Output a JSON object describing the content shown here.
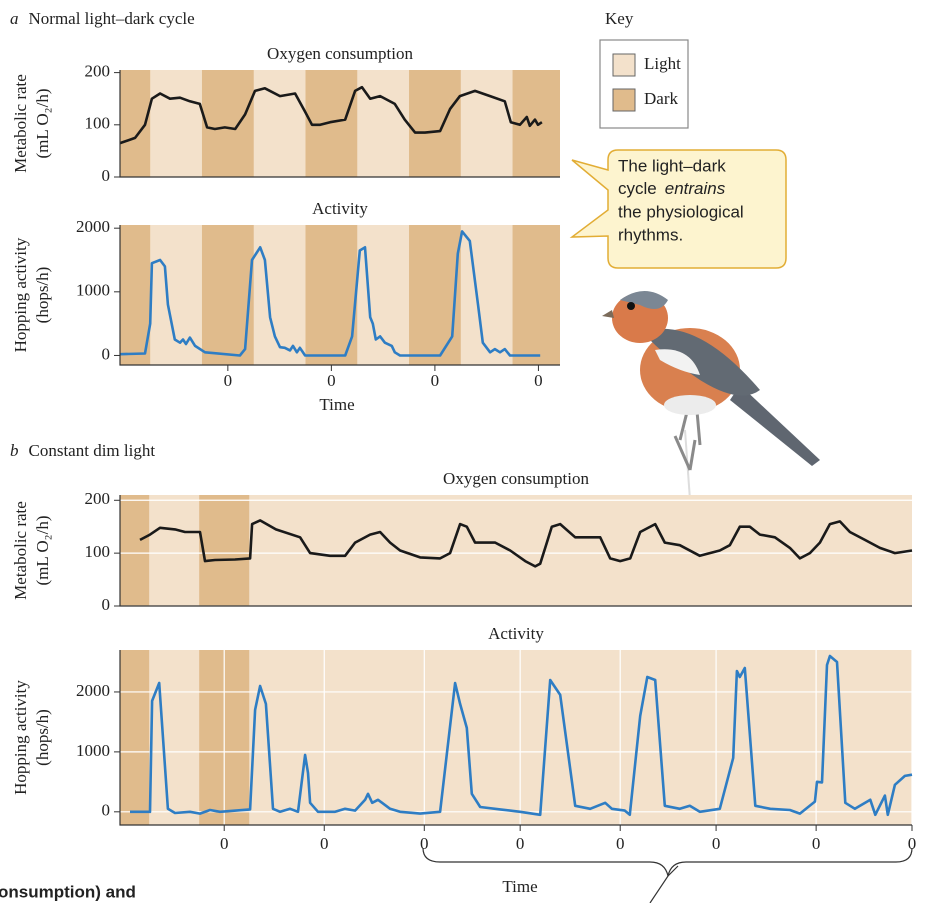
{
  "panels": [
    {
      "letter": "a",
      "title": "Normal light–dark cycle"
    },
    {
      "letter": "b",
      "title": "Constant dim light"
    }
  ],
  "key": {
    "title": "Key",
    "items": [
      {
        "label": "Light",
        "color": "#f3e1cb"
      },
      {
        "label": "Dark",
        "color": "#e0bb8c"
      }
    ]
  },
  "callout": {
    "lines": [
      "The light–dark",
      "cycle",
      "entrains",
      "the physiological",
      "rhythms."
    ]
  },
  "footer_fragment": "onsumption) and",
  "chart_data": [
    {
      "type": "line",
      "title": "Oxygen consumption",
      "ylabel": [
        "Metabolic rate",
        "(mL O₂/h)"
      ],
      "color": "#1a1a1a",
      "xlim": [
        0,
        102
      ],
      "ylim": [
        0,
        205
      ],
      "yticks": [
        0,
        100,
        200
      ],
      "grid": false,
      "dark_intervals": [
        [
          0,
          7
        ],
        [
          19,
          31
        ],
        [
          43,
          55
        ],
        [
          67,
          79
        ],
        [
          91,
          102
        ]
      ],
      "x": [
        0,
        3.5,
        5.8,
        7.4,
        9.3,
        11.6,
        13.9,
        16.2,
        18.5,
        20.2,
        22,
        24.3,
        26.7,
        29,
        31.3,
        33.6,
        37.1,
        40.6,
        42.9,
        44.5,
        46.4,
        48.7,
        52.2,
        54.5,
        56.1,
        58,
        60.3,
        63.7,
        66,
        68.4,
        70.7,
        74.2,
        76.5,
        78.8,
        82.3,
        85.8,
        89.2,
        90.6,
        92.7,
        94.3,
        95,
        96.2,
        96.9,
        97.8
      ],
      "values": [
        65,
        75,
        100,
        150,
        160,
        150,
        152,
        145,
        140,
        95,
        92,
        95,
        92,
        120,
        165,
        170,
        155,
        160,
        125,
        100,
        100,
        105,
        110,
        165,
        172,
        150,
        155,
        140,
        110,
        85,
        85,
        88,
        130,
        155,
        165,
        155,
        145,
        105,
        100,
        115,
        98,
        110,
        100,
        105
      ]
    },
    {
      "type": "line",
      "title": "Activity",
      "ylabel": [
        "Hopping activity",
        "(hops/h)"
      ],
      "xlabel": "Time",
      "color": "#2e7dc4",
      "xlim": [
        0,
        102
      ],
      "ylim": [
        -150,
        2050
      ],
      "yticks": [
        0,
        1000,
        2000
      ],
      "grid": false,
      "xticks": [
        {
          "value": 25,
          "label": "0"
        },
        {
          "value": 49,
          "label": "0"
        },
        {
          "value": 73,
          "label": "0"
        },
        {
          "value": 97,
          "label": "0"
        }
      ],
      "dark_intervals": [
        [
          0,
          7
        ],
        [
          19,
          31
        ],
        [
          43,
          55
        ],
        [
          67,
          79
        ],
        [
          91,
          102
        ]
      ],
      "x": [
        0,
        5.8,
        7,
        7.4,
        9.3,
        10.4,
        11.1,
        12.7,
        13.9,
        14.6,
        15.3,
        16.2,
        17.4,
        19.7,
        27.8,
        29,
        30.6,
        32.5,
        33.6,
        34.8,
        35.9,
        37.1,
        38.2,
        39.4,
        40.1,
        41,
        41.7,
        42.9,
        52.2,
        53.8,
        55.6,
        56.8,
        58,
        58.6,
        59.3,
        60.3,
        61.4,
        63,
        63.7,
        64.9,
        74.2,
        77,
        78.3,
        79.3,
        81.1,
        83,
        84.1,
        85.8,
        86.9,
        88.1,
        89.2,
        90.4,
        97.4
      ],
      "values": [
        20,
        30,
        500,
        1450,
        1500,
        1400,
        800,
        250,
        200,
        250,
        180,
        280,
        150,
        50,
        0,
        100,
        1500,
        1700,
        1500,
        600,
        300,
        130,
        120,
        80,
        150,
        50,
        120,
        0,
        0,
        300,
        1650,
        1700,
        600,
        500,
        250,
        300,
        200,
        150,
        50,
        0,
        0,
        300,
        1600,
        1950,
        1800,
        800,
        200,
        50,
        100,
        50,
        100,
        0,
        0
      ]
    },
    {
      "type": "line",
      "title": "Oxygen consumption",
      "ylabel": [
        "Metabolic rate",
        "(mL O₂/h)"
      ],
      "color": "#1a1a1a",
      "xlim": [
        0,
        190
      ],
      "ylim": [
        0,
        210
      ],
      "yticks": [
        0,
        100,
        200
      ],
      "grid": true,
      "dark_intervals": [
        [
          0,
          7
        ],
        [
          19,
          31
        ]
      ],
      "x": [
        4.8,
        7.2,
        9.6,
        13.2,
        15.6,
        19.2,
        20.4,
        22.8,
        27.6,
        31.2,
        31.7,
        33.6,
        37.4,
        43.2,
        45.6,
        50.4,
        54,
        56.4,
        60,
        62.4,
        64.8,
        67.2,
        72,
        76.8,
        79.2,
        81.6,
        83.2,
        85.2,
        90,
        93.6,
        97.2,
        99.6,
        100.8,
        102,
        103.6,
        105.6,
        109.2,
        115.2,
        117.6,
        120,
        122.4,
        124.8,
        128.4,
        130.7,
        134.3,
        139.1,
        143.9,
        146.3,
        148.7,
        151.1,
        153.5,
        157.1,
        160.7,
        163.1,
        165.5,
        167.9,
        170.3,
        172.7,
        175.1,
        178.7,
        182.3,
        185.9,
        190
      ],
      "values": [
        125,
        135,
        148,
        145,
        140,
        140,
        85,
        87,
        88,
        90,
        155,
        162,
        145,
        130,
        100,
        95,
        95,
        120,
        135,
        140,
        120,
        105,
        92,
        90,
        100,
        155,
        150,
        120,
        120,
        105,
        85,
        75,
        80,
        110,
        150,
        155,
        130,
        130,
        90,
        85,
        90,
        140,
        155,
        120,
        115,
        95,
        105,
        115,
        150,
        150,
        135,
        130,
        110,
        90,
        100,
        120,
        155,
        160,
        140,
        125,
        110,
        100,
        105
      ]
    },
    {
      "type": "line",
      "title": "Activity",
      "ylabel": [
        "Hopping activity",
        "(hops/h)"
      ],
      "xlabel": "Time",
      "color": "#2e7dc4",
      "xlim": [
        0,
        190
      ],
      "ylim": [
        -220,
        2700
      ],
      "yticks": [
        0,
        1000,
        2000
      ],
      "grid": true,
      "xticks": [
        {
          "value": 25,
          "label": "0"
        },
        {
          "value": 49,
          "label": "0"
        },
        {
          "value": 73,
          "label": "0"
        },
        {
          "value": 96,
          "label": "0"
        },
        {
          "value": 120,
          "label": "0"
        },
        {
          "value": 143,
          "label": "0"
        },
        {
          "value": 167,
          "label": "0"
        },
        {
          "value": 190,
          "label": "0"
        }
      ],
      "dark_intervals": [
        [
          0,
          7
        ],
        [
          19,
          31
        ]
      ],
      "x": [
        2.4,
        7.2,
        7.7,
        9.4,
        11.5,
        13.2,
        16.8,
        19.2,
        21.6,
        24,
        31.2,
        32.4,
        33.6,
        35,
        36.7,
        38.4,
        40.8,
        42.7,
        44.4,
        45.1,
        45.6,
        47.5,
        51.6,
        54,
        56.4,
        58.8,
        59.5,
        60.5,
        61.9,
        64.8,
        67.2,
        72,
        76.8,
        80.4,
        81.6,
        83.2,
        84.4,
        86.4,
        91.2,
        96,
        100.8,
        103.2,
        105.6,
        109.2,
        112.8,
        116.4,
        118,
        121.1,
        122.3,
        124.8,
        126.5,
        128.4,
        130.7,
        134.3,
        136.7,
        139.1,
        143.9,
        147.1,
        148,
        148.7,
        149.9,
        152.4,
        156,
        160.7,
        163.1,
        166.7,
        167.2,
        168.4,
        169.6,
        170.3,
        172,
        174,
        176.3,
        180,
        181.2,
        183.5,
        184.2,
        185.9,
        188.3,
        190
      ],
      "values": [
        0,
        0,
        1850,
        2150,
        50,
        -20,
        0,
        -30,
        30,
        0,
        40,
        1700,
        2100,
        1800,
        50,
        0,
        50,
        0,
        950,
        650,
        150,
        0,
        0,
        50,
        20,
        200,
        300,
        150,
        200,
        50,
        0,
        -30,
        0,
        2150,
        1800,
        1400,
        300,
        80,
        40,
        0,
        -50,
        2200,
        1950,
        100,
        50,
        150,
        50,
        20,
        -50,
        1600,
        2250,
        2200,
        100,
        50,
        100,
        0,
        50,
        900,
        2350,
        2250,
        2400,
        100,
        50,
        30,
        -30,
        170,
        500,
        490,
        2450,
        2600,
        2500,
        150,
        50,
        200,
        -50,
        270,
        -50,
        450,
        600,
        620
      ]
    }
  ]
}
